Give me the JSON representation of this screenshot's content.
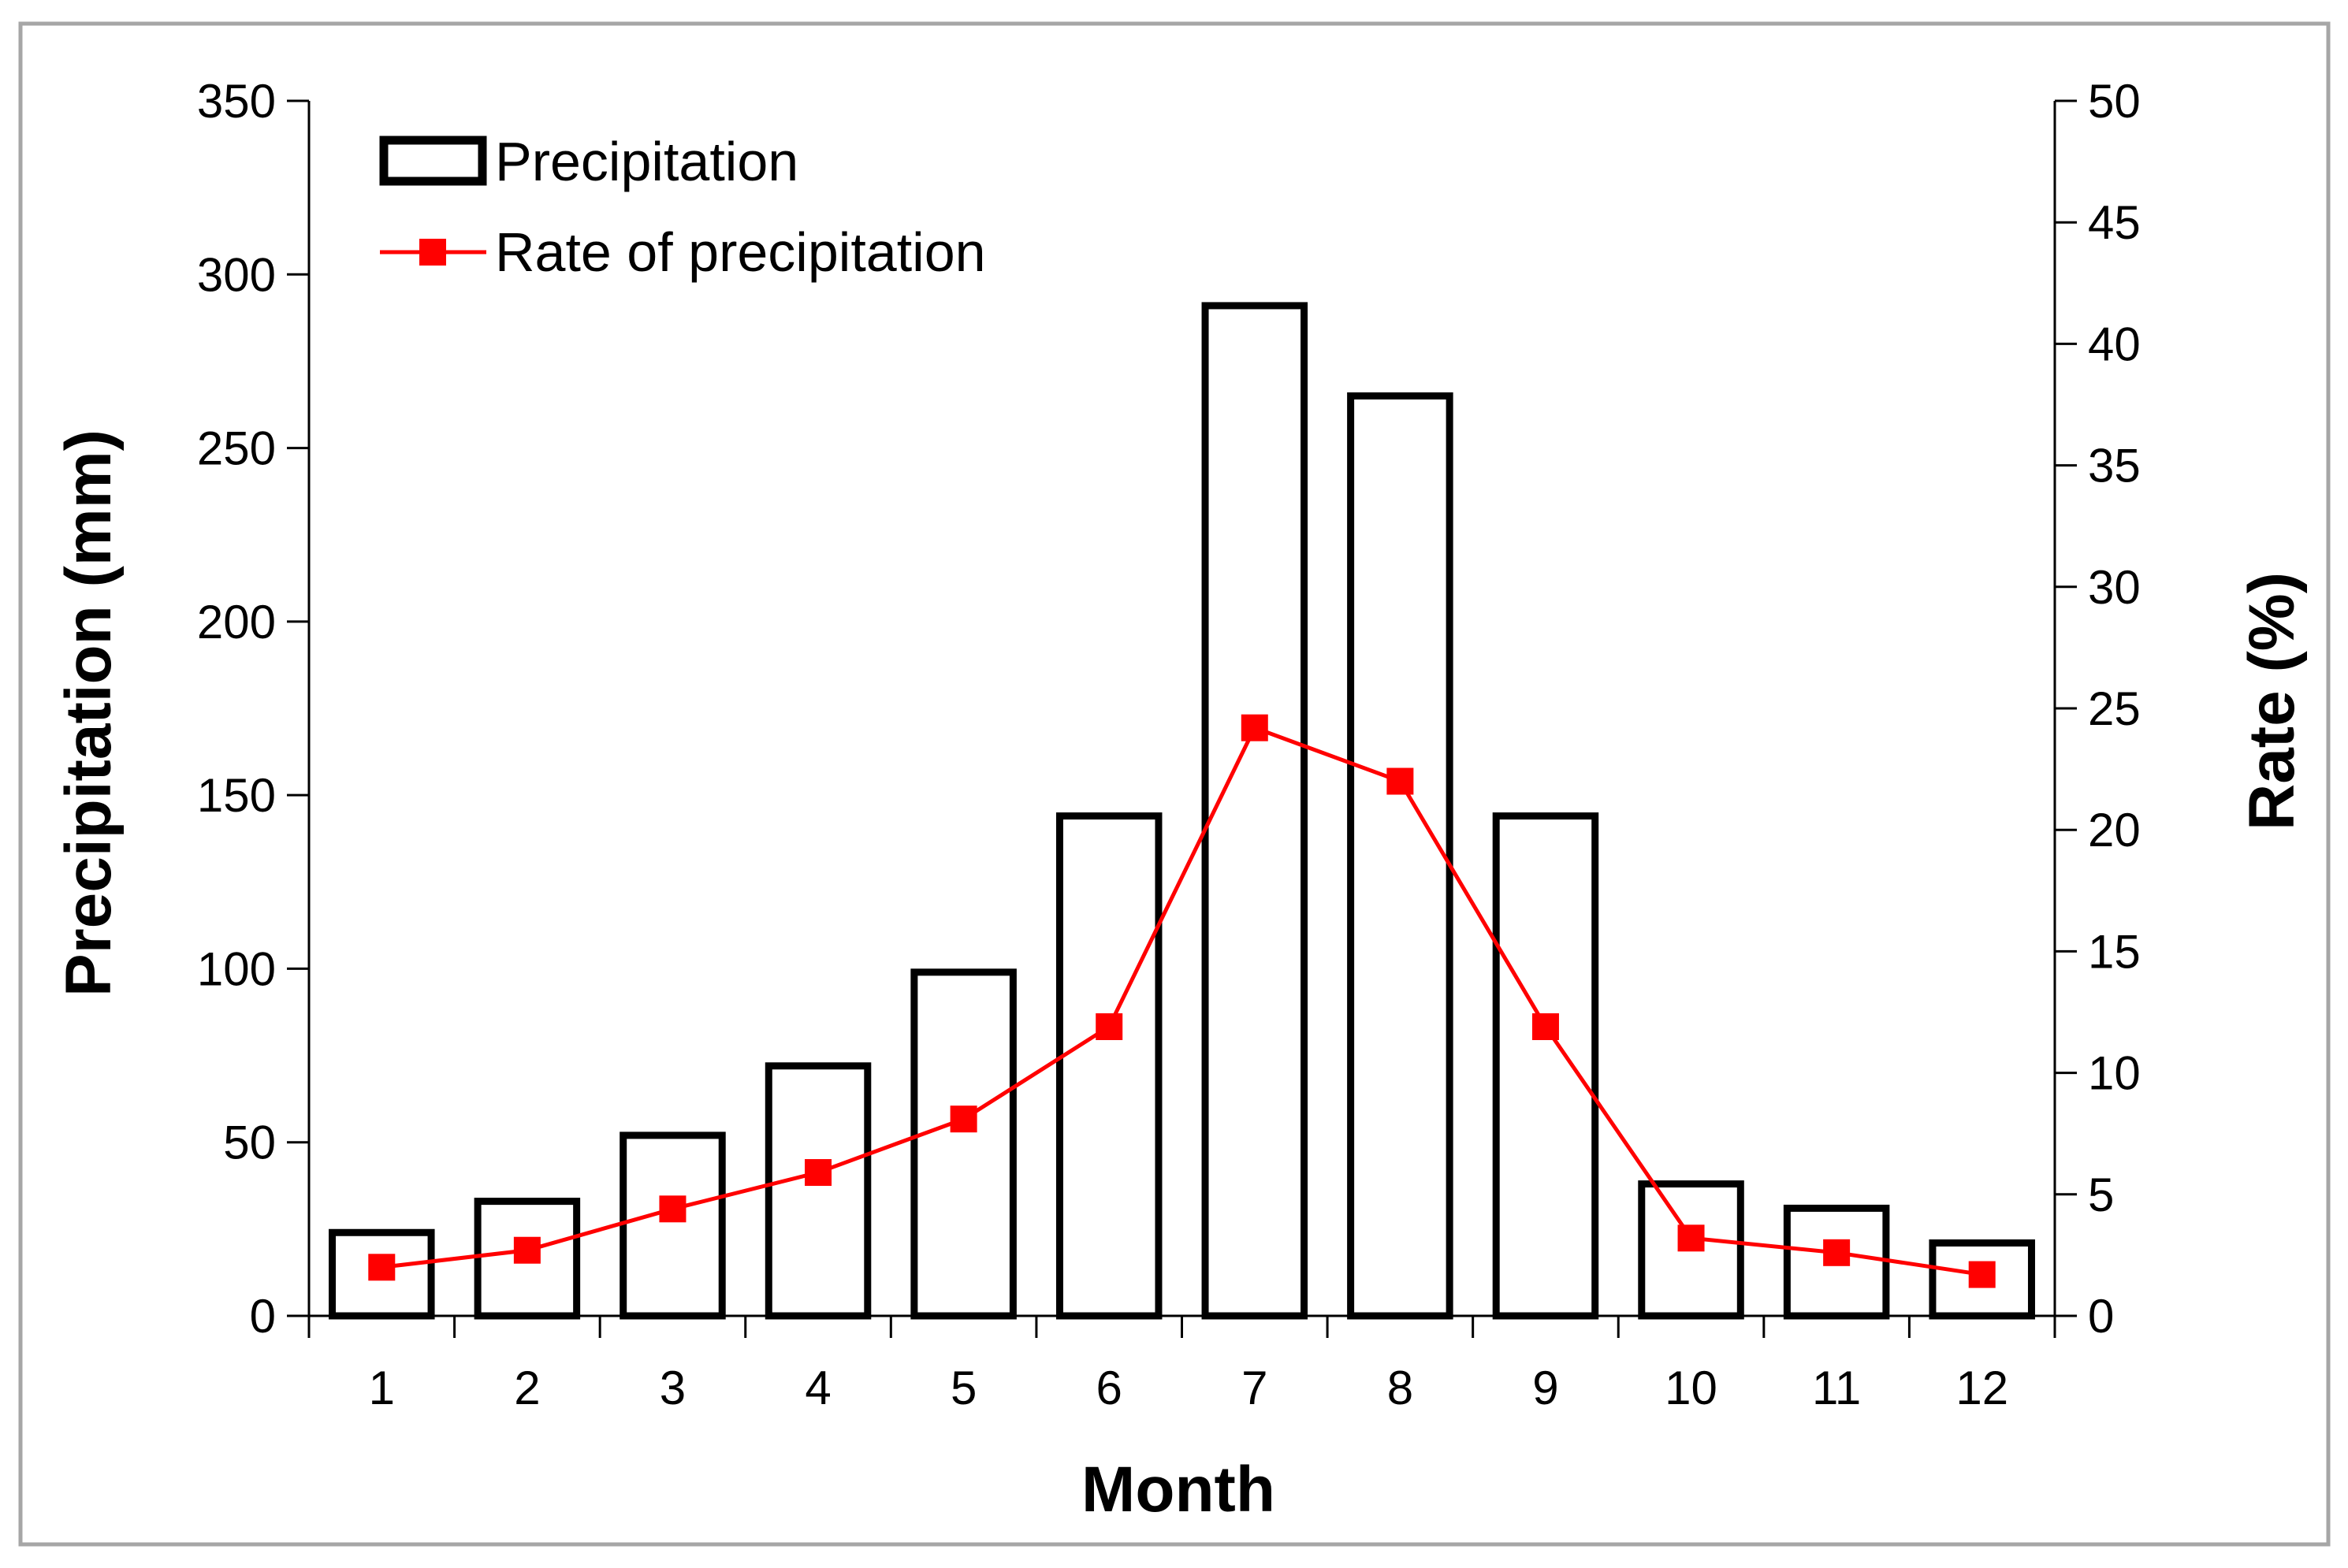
{
  "chart_data": {
    "type": "bar+line",
    "xlabel": "Month",
    "ylabel": "Precipitation (mm)",
    "y2label": "Rate (%)",
    "categories": [
      "1",
      "2",
      "3",
      "4",
      "5",
      "6",
      "7",
      "8",
      "9",
      "10",
      "11",
      "12"
    ],
    "ylim": [
      0,
      350
    ],
    "y2lim": [
      0,
      50
    ],
    "yticks": [
      "0",
      "50",
      "100",
      "150",
      "200",
      "250",
      "300",
      "350"
    ],
    "y2ticks": [
      "0",
      "5",
      "10",
      "15",
      "20",
      "25",
      "30",
      "35",
      "40",
      "45",
      "50"
    ],
    "series": [
      {
        "name": "Precipitation",
        "type": "bar",
        "axis": "left",
        "values": [
          24,
          33,
          52,
          72,
          99,
          144,
          291,
          265,
          144,
          38,
          31,
          21
        ]
      },
      {
        "name": "Rate of precipitation",
        "type": "line",
        "axis": "right",
        "values": [
          2.0,
          2.7,
          4.4,
          5.9,
          8.1,
          11.9,
          24.2,
          22.0,
          11.9,
          3.2,
          2.6,
          1.7
        ]
      }
    ],
    "legend_position": "top-left",
    "colors": {
      "bar_fill": "#ffffff",
      "bar_stroke": "#000000",
      "line": "#ff0000",
      "marker": "#ff0000",
      "frame": "#a6a6a6"
    }
  }
}
